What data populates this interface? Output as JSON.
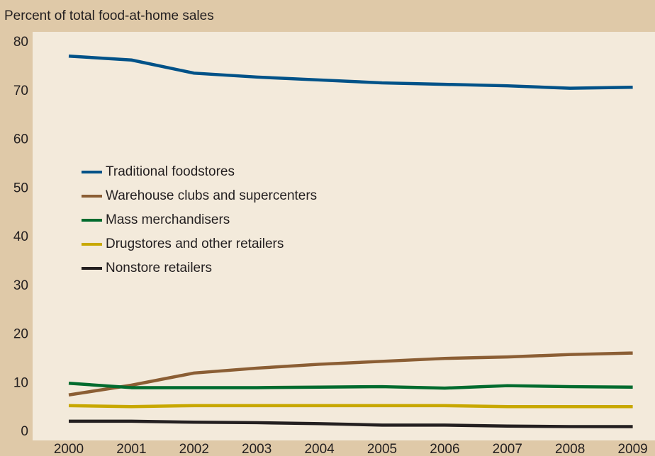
{
  "chart_data": {
    "type": "line",
    "y_axis_label": "Percent of total food-at-home sales",
    "categories": [
      "2000",
      "2001",
      "2002",
      "2003",
      "2004",
      "2005",
      "2006",
      "2007",
      "2008",
      "2009"
    ],
    "series": [
      {
        "name": "Traditional foodstores",
        "color": "#005288",
        "values": [
          77.2,
          76.4,
          73.7,
          72.9,
          72.3,
          71.7,
          71.4,
          71.1,
          70.6,
          70.8
        ]
      },
      {
        "name": "Warehouse clubs and supercenters",
        "color": "#8b5e34",
        "values": [
          7.6,
          9.6,
          12.1,
          13.1,
          13.9,
          14.5,
          15.1,
          15.4,
          15.9,
          16.2
        ]
      },
      {
        "name": "Mass merchandisers",
        "color": "#006b2e",
        "values": [
          10.0,
          9.1,
          9.1,
          9.1,
          9.2,
          9.3,
          9.0,
          9.5,
          9.3,
          9.2
        ]
      },
      {
        "name": "Drugstores and other retailers",
        "color": "#c8a800",
        "values": [
          5.4,
          5.2,
          5.4,
          5.4,
          5.4,
          5.4,
          5.4,
          5.2,
          5.2,
          5.2
        ]
      },
      {
        "name": "Nonstore retailers",
        "color": "#231f20",
        "values": [
          2.2,
          2.2,
          2.0,
          1.9,
          1.7,
          1.4,
          1.4,
          1.2,
          1.1,
          1.1
        ]
      }
    ],
    "ylim": [
      0,
      80
    ],
    "yticks": [
      0,
      10,
      20,
      30,
      40,
      50,
      60,
      70,
      80
    ],
    "grid": false,
    "legend": "left"
  }
}
